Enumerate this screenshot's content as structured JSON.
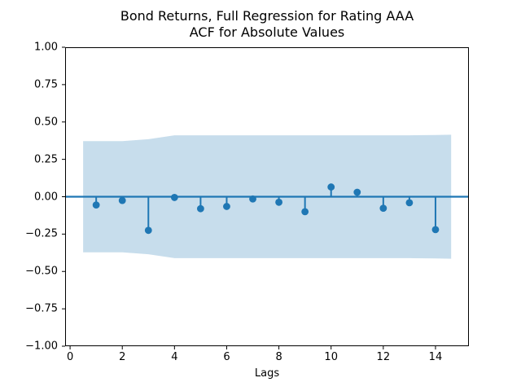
{
  "figure": {
    "title_line1": "Bond Returns, Full Regression for Rating AAA",
    "title_line2": "ACF for Absolute Values"
  },
  "chart_data": {
    "type": "stem",
    "subtype": "autocorrelation",
    "title": "Bond Returns, Full Regression for Rating AAA\nACF for Absolute Values",
    "xlabel": "Lags",
    "ylabel": "",
    "xlim": [
      -0.19,
      15.28
    ],
    "ylim": [
      -1.0,
      1.0
    ],
    "grid": false,
    "legend": false,
    "lags": [
      1,
      2,
      3,
      4,
      5,
      6,
      7,
      8,
      9,
      10,
      11,
      12,
      13,
      14
    ],
    "acf_values": [
      -0.055,
      -0.025,
      -0.225,
      -0.005,
      -0.08,
      -0.065,
      -0.015,
      -0.037,
      -0.1,
      0.065,
      0.03,
      -0.077,
      -0.04,
      -0.22
    ],
    "zero_line_y": 0.0,
    "confidence_band": {
      "x": [
        0.5,
        1,
        2,
        3,
        4,
        5,
        6,
        7,
        8,
        9,
        10,
        11,
        12,
        13,
        14,
        14.6
      ],
      "upper": [
        0.372,
        0.372,
        0.372,
        0.385,
        0.411,
        0.411,
        0.411,
        0.411,
        0.411,
        0.411,
        0.411,
        0.411,
        0.411,
        0.411,
        0.413,
        0.415
      ],
      "lower": [
        -0.372,
        -0.372,
        -0.372,
        -0.385,
        -0.411,
        -0.411,
        -0.411,
        -0.411,
        -0.411,
        -0.411,
        -0.411,
        -0.411,
        -0.411,
        -0.411,
        -0.413,
        -0.415
      ]
    },
    "xticks": {
      "values": [
        0,
        2,
        4,
        6,
        8,
        10,
        12,
        14
      ],
      "labels": [
        "0",
        "2",
        "4",
        "6",
        "8",
        "10",
        "12",
        "14"
      ]
    },
    "yticks": {
      "values": [
        1.0,
        0.75,
        0.5,
        0.25,
        0.0,
        -0.25,
        -0.5,
        -0.75,
        -1.0
      ],
      "labels": [
        "1.00",
        "0.75",
        "0.50",
        "0.25",
        "0.00",
        "−0.25",
        "−0.50",
        "−0.75",
        "−1.00"
      ]
    },
    "style": {
      "stem_color": "#1f77b4",
      "marker_color": "#1f77b4",
      "zero_line_color": "#1f77b4",
      "band_color": "#c7ddec",
      "spine_color": "#000000",
      "text_color": "#000000",
      "background": "#ffffff",
      "marker_radius": 4.4,
      "stem_width": 2,
      "zero_line_width": 2.2,
      "tick_length": 4
    }
  }
}
